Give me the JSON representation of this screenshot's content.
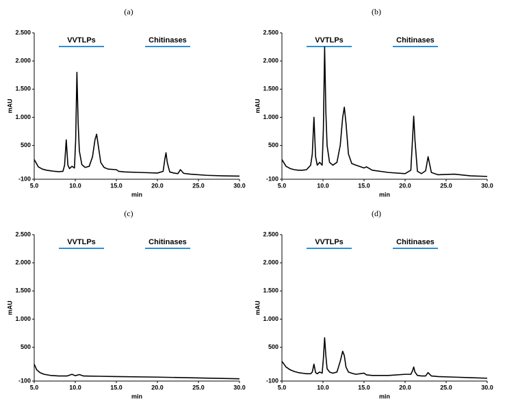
{
  "chart_data": [
    {
      "type": "line",
      "title": "(a)",
      "x_label": "min",
      "y_label": "mAU",
      "color": "#000000",
      "xlim": [
        5,
        30
      ],
      "ylim": [
        -100,
        2500
      ],
      "xticks": [
        {
          "value": 5,
          "label": "5.0"
        },
        {
          "value": 10,
          "label": "10.0"
        },
        {
          "value": 15,
          "label": "15.0"
        },
        {
          "value": 20,
          "label": "20.0"
        },
        {
          "value": 25,
          "label": "25.0"
        },
        {
          "value": 30,
          "label": "30.0"
        }
      ],
      "yticks": [
        -100,
        500,
        {
          "value": 1000,
          "label": "1.000"
        },
        {
          "value": 1500,
          "label": "1.500"
        },
        {
          "value": 2000,
          "label": "2.000"
        },
        {
          "value": 2500,
          "label": "2.500"
        }
      ],
      "annotations": [
        {
          "text": "VVTLPs",
          "xrange": [
            8,
            13.5
          ],
          "color": "#2b8fd6"
        },
        {
          "text": "Chitinases",
          "xrange": [
            18.5,
            24
          ],
          "color": "#2b8fd6"
        }
      ],
      "x": [
        5,
        5.5,
        6,
        6.5,
        7,
        7.5,
        8,
        8.5,
        8.7,
        8.9,
        9.1,
        9.3,
        9.6,
        9.9,
        10.05,
        10.2,
        10.35,
        10.5,
        10.8,
        11.2,
        11.7,
        12.1,
        12.4,
        12.6,
        12.8,
        13.1,
        13.5,
        14,
        15,
        15.3,
        16,
        18,
        20,
        20.7,
        20.9,
        21.05,
        21.2,
        21.5,
        22,
        22.5,
        22.8,
        23.2,
        24,
        26,
        28,
        30
      ],
      "values": [
        250,
        120,
        80,
        60,
        50,
        40,
        35,
        40,
        150,
        600,
        150,
        90,
        130,
        100,
        600,
        1800,
        900,
        400,
        160,
        110,
        130,
        300,
        600,
        700,
        500,
        200,
        110,
        80,
        70,
        40,
        30,
        20,
        10,
        40,
        250,
        370,
        200,
        30,
        10,
        0,
        70,
        5,
        -10,
        -30,
        -40,
        -45
      ]
    },
    {
      "type": "line",
      "title": "(b)",
      "x_label": "min",
      "y_label": "mAU",
      "color": "#000000",
      "xlim": [
        5,
        30
      ],
      "ylim": [
        -100,
        2500
      ],
      "xticks": [
        {
          "value": 5,
          "label": "5.0"
        },
        {
          "value": 10,
          "label": "10.0"
        },
        {
          "value": 15,
          "label": "15.0"
        },
        {
          "value": 20,
          "label": "20.0"
        },
        {
          "value": 25,
          "label": "25.0"
        },
        {
          "value": 30,
          "label": "30.0"
        }
      ],
      "yticks": [
        -100,
        500,
        {
          "value": 1000,
          "label": "1.000"
        },
        {
          "value": 1500,
          "label": "1.500"
        },
        {
          "value": 2000,
          "label": "2.000"
        },
        {
          "value": 2500,
          "label": "2.500"
        }
      ],
      "annotations": [
        {
          "text": "VVTLPs",
          "xrange": [
            8,
            13.5
          ],
          "color": "#2b8fd6"
        },
        {
          "text": "Chitinases",
          "xrange": [
            18.5,
            24
          ],
          "color": "#2b8fd6"
        }
      ],
      "x": [
        5,
        5.5,
        6,
        6.5,
        7,
        7.5,
        8,
        8.5,
        8.7,
        8.9,
        9.1,
        9.3,
        9.6,
        9.9,
        10.05,
        10.2,
        10.35,
        10.5,
        10.8,
        11.2,
        11.7,
        12.1,
        12.4,
        12.6,
        12.8,
        13.1,
        13.5,
        14,
        15,
        15.3,
        16,
        18,
        20,
        20.7,
        20.9,
        21.05,
        21.2,
        21.5,
        22,
        22.5,
        22.8,
        23.2,
        24,
        26,
        28,
        30
      ],
      "values": [
        250,
        130,
        90,
        70,
        60,
        60,
        70,
        150,
        350,
        1000,
        300,
        150,
        200,
        150,
        800,
        2250,
        1100,
        500,
        200,
        150,
        200,
        500,
        1000,
        1180,
        900,
        350,
        180,
        150,
        100,
        120,
        60,
        20,
        0,
        60,
        600,
        1020,
        600,
        40,
        0,
        50,
        300,
        20,
        -20,
        -10,
        -40,
        -50
      ]
    },
    {
      "type": "line",
      "title": "(c)",
      "x_label": "min",
      "y_label": "mAU",
      "color": "#000000",
      "xlim": [
        5,
        30
      ],
      "ylim": [
        -100,
        2500
      ],
      "xticks": [
        {
          "value": 5,
          "label": "5.0"
        },
        {
          "value": 10,
          "label": "10.0"
        },
        {
          "value": 15,
          "label": "15.0"
        },
        {
          "value": 20,
          "label": "20.0"
        },
        {
          "value": 25,
          "label": "25.0"
        },
        {
          "value": 30,
          "label": "30.0"
        }
      ],
      "yticks": [
        -100,
        500,
        {
          "value": 1000,
          "label": "1.000"
        },
        {
          "value": 1500,
          "label": "1.500"
        },
        {
          "value": 2000,
          "label": "2.000"
        },
        {
          "value": 2500,
          "label": "2.500"
        }
      ],
      "annotations": [
        {
          "text": "VVTLPs",
          "xrange": [
            8,
            13.5
          ],
          "color": "#2b8fd6"
        },
        {
          "text": "Chitinases",
          "xrange": [
            18.5,
            24
          ],
          "color": "#2b8fd6"
        }
      ],
      "x": [
        5,
        5.3,
        5.7,
        6.2,
        7,
        8,
        9,
        9.6,
        10,
        10.5,
        11,
        13,
        15,
        20,
        25,
        30
      ],
      "values": [
        200,
        100,
        50,
        20,
        0,
        -10,
        -10,
        20,
        -5,
        15,
        -10,
        -15,
        -20,
        -30,
        -45,
        -60
      ]
    },
    {
      "type": "line",
      "title": "(d)",
      "x_label": "min",
      "y_label": "mAU",
      "color": "#000000",
      "xlim": [
        5,
        30
      ],
      "ylim": [
        -100,
        2500
      ],
      "xticks": [
        {
          "value": 5,
          "label": "5.0"
        },
        {
          "value": 10,
          "label": "10.0"
        },
        {
          "value": 15,
          "label": "15.0"
        },
        {
          "value": 20,
          "label": "20.0"
        },
        {
          "value": 25,
          "label": "25.0"
        },
        {
          "value": 30,
          "label": "30.0"
        }
      ],
      "yticks": [
        -100,
        500,
        {
          "value": 1000,
          "label": "1.000"
        },
        {
          "value": 1500,
          "label": "1.500"
        },
        {
          "value": 2000,
          "label": "2.000"
        },
        {
          "value": 2500,
          "label": "2.500"
        }
      ],
      "annotations": [
        {
          "text": "VVTLPs",
          "xrange": [
            8,
            13.5
          ],
          "color": "#2b8fd6"
        },
        {
          "text": "Chitinases",
          "xrange": [
            18.5,
            24
          ],
          "color": "#2b8fd6"
        }
      ],
      "x": [
        5,
        5.5,
        6,
        6.5,
        7,
        7.5,
        8,
        8.5,
        8.7,
        8.9,
        9.1,
        9.3,
        9.6,
        9.9,
        10.05,
        10.2,
        10.35,
        10.5,
        10.8,
        11.2,
        11.7,
        12.1,
        12.4,
        12.6,
        12.8,
        13.1,
        13.5,
        14,
        15,
        15.3,
        16,
        18,
        20,
        20.7,
        20.9,
        21.05,
        21.2,
        21.5,
        22,
        22.5,
        22.8,
        23.2,
        24,
        26,
        28,
        30
      ],
      "values": [
        250,
        150,
        100,
        70,
        50,
        40,
        30,
        30,
        60,
        200,
        50,
        30,
        60,
        40,
        300,
        670,
        350,
        120,
        60,
        40,
        60,
        250,
        430,
        350,
        150,
        60,
        40,
        20,
        40,
        10,
        0,
        0,
        20,
        20,
        80,
        150,
        60,
        0,
        -10,
        -10,
        50,
        -10,
        -20,
        -30,
        -40,
        -50
      ]
    }
  ]
}
